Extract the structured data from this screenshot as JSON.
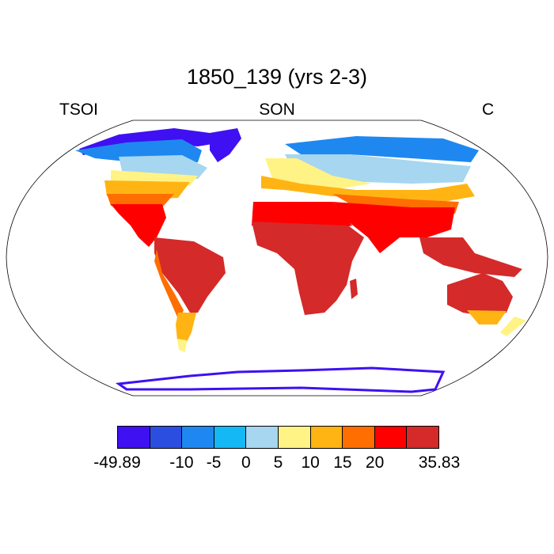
{
  "title": "1850_139 (yrs 2-3)",
  "subtitle": {
    "left": "TSOI",
    "center": "SON",
    "right": "C"
  },
  "colorbar": {
    "colors": [
      "#3f10f2",
      "#2c4ee0",
      "#1e88f0",
      "#14b8f4",
      "#a6d6f0",
      "#fff385",
      "#ffb414",
      "#ff6e00",
      "#ff0000",
      "#d42a2a"
    ],
    "labels": [
      "-49.89",
      "-10",
      "-5",
      "0",
      "5",
      "10",
      "15",
      "20",
      "35.83"
    ]
  },
  "map": {
    "projection": "robinson",
    "ocean_color": "#ffffff",
    "coastline_color": "#000000"
  }
}
